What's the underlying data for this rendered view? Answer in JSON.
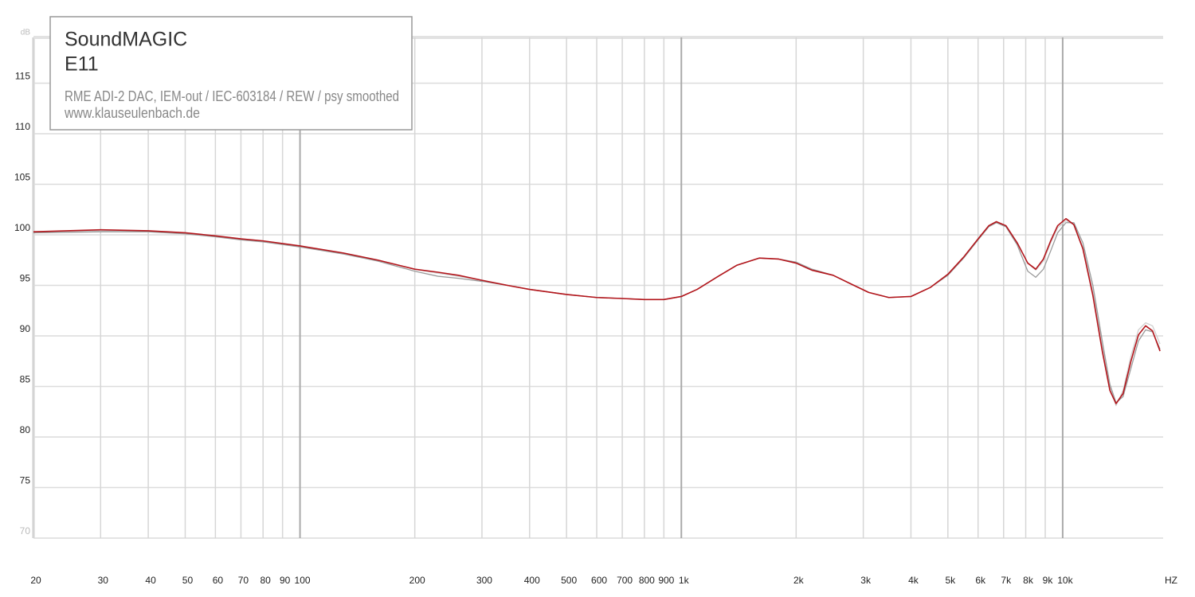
{
  "chart_data": {
    "type": "line",
    "title": "SoundMAGIC",
    "subtitle": "E11",
    "annotations": [
      "RME ADI-2 DAC, IEM-out / IEC-603184 / REW / psy smoothed",
      "www.klauseulenbach.de"
    ],
    "x_label": "HZ",
    "y_label": "dB",
    "x_scale": "log",
    "grid": true,
    "xlim": [
      20,
      20000
    ],
    "ylim": [
      70,
      120
    ],
    "yticks": [
      70,
      75,
      80,
      85,
      90,
      95,
      100,
      105,
      110,
      115
    ],
    "xticks": [
      20,
      30,
      40,
      50,
      60,
      70,
      80,
      90,
      100,
      200,
      300,
      400,
      500,
      600,
      700,
      800,
      900,
      {
        "value": 1000,
        "label": "1k"
      },
      {
        "value": 2000,
        "label": "2k"
      },
      {
        "value": 3000,
        "label": "3k"
      },
      {
        "value": 4000,
        "label": "4k"
      },
      {
        "value": 5000,
        "label": "5k"
      },
      {
        "value": 6000,
        "label": "6k"
      },
      {
        "value": 7000,
        "label": "7k"
      },
      {
        "value": 8000,
        "label": "8k"
      },
      {
        "value": 9000,
        "label": "9k"
      },
      {
        "value": 10000,
        "label": "10k"
      }
    ],
    "x": [
      20,
      30,
      40,
      50,
      60,
      70,
      80,
      100,
      130,
      160,
      200,
      230,
      260,
      300,
      350,
      400,
      500,
      600,
      700,
      800,
      900,
      1000,
      1100,
      1250,
      1400,
      1600,
      1800,
      2000,
      2200,
      2500,
      2800,
      3100,
      3500,
      4000,
      4500,
      5000,
      5500,
      6000,
      6400,
      6700,
      7100,
      7600,
      8100,
      8500,
      8900,
      9300,
      9700,
      10200,
      10700,
      11300,
      12000,
      12700,
      13300,
      13800,
      14400,
      15100,
      15800,
      16500,
      17200,
      18000
    ],
    "series": [
      {
        "color": "#d0d0d0",
        "values": [
          100.3,
          100.4,
          100.4,
          100.2,
          99.9,
          99.6,
          99.4,
          98.9,
          98.2,
          97.5,
          96.6,
          96.2,
          95.9,
          95.5,
          95.0,
          94.6,
          94.1,
          93.8,
          93.7,
          93.6,
          93.6,
          93.9,
          94.6,
          95.9,
          97.0,
          97.7,
          97.6,
          97.2,
          96.5,
          96.0,
          95.1,
          94.3,
          93.8,
          93.9,
          94.8,
          96.1,
          97.8,
          99.6,
          100.9,
          101.3,
          100.9,
          99.2,
          97.2,
          96.5,
          97.4,
          99.2,
          100.7,
          101.4,
          101.0,
          98.8,
          94.4,
          89.0,
          85.0,
          83.1,
          84.6,
          88.0,
          90.6,
          91.3,
          91.0,
          89.2
        ]
      },
      {
        "color": "#9a9a9a",
        "values": [
          100.2,
          100.3,
          100.3,
          100.1,
          99.8,
          99.5,
          99.3,
          98.8,
          98.1,
          97.4,
          96.4,
          95.9,
          95.7,
          95.4,
          95.0,
          94.6,
          94.1,
          93.8,
          93.7,
          93.6,
          93.6,
          93.9,
          94.6,
          95.9,
          97.0,
          97.7,
          97.6,
          97.3,
          96.6,
          96.0,
          95.1,
          94.3,
          93.8,
          93.9,
          94.8,
          96.0,
          97.7,
          99.5,
          100.8,
          101.2,
          100.8,
          99.0,
          96.4,
          95.8,
          96.6,
          98.4,
          100.2,
          101.2,
          101.2,
          99.2,
          95.0,
          89.5,
          85.2,
          83.4,
          84.0,
          86.8,
          89.5,
          90.6,
          90.4,
          88.7
        ]
      },
      {
        "color": "#b3151b",
        "values": [
          100.3,
          100.5,
          100.4,
          100.2,
          99.9,
          99.6,
          99.4,
          98.9,
          98.2,
          97.5,
          96.6,
          96.3,
          96.0,
          95.5,
          95.0,
          94.6,
          94.1,
          93.8,
          93.7,
          93.6,
          93.6,
          93.9,
          94.6,
          95.9,
          97.0,
          97.7,
          97.6,
          97.2,
          96.5,
          96.0,
          95.1,
          94.3,
          93.8,
          93.9,
          94.8,
          96.1,
          97.8,
          99.6,
          100.9,
          101.3,
          100.9,
          99.2,
          97.2,
          96.6,
          97.6,
          99.4,
          100.9,
          101.6,
          101.0,
          98.6,
          94.0,
          88.5,
          84.6,
          83.3,
          84.3,
          87.5,
          90.1,
          91.0,
          90.5,
          88.5
        ]
      }
    ]
  }
}
